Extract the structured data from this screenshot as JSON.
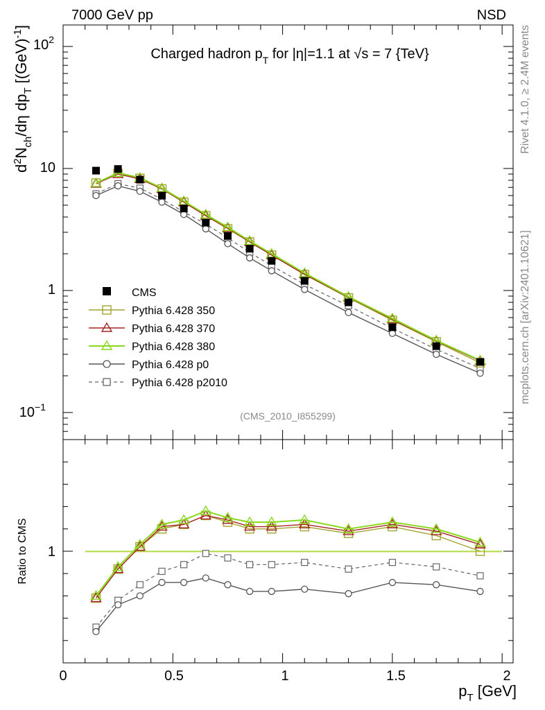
{
  "header": {
    "left": "7000 GeV pp",
    "right": "NSD"
  },
  "side_text": {
    "rivet": "Rivet 4.1.0, ≥ 2.4M events",
    "mcplots": "mcplots.cern.ch [arXiv:2401.10621]"
  },
  "analysis_id": "(CMS_2010_I855299)",
  "chart_data": [
    {
      "type": "line",
      "panel": "main",
      "title_parts": {
        "a": "Charged hadron p",
        "a_sub": "T",
        "b": " for |η|=1.1 at √s = 7 {TeV}"
      },
      "ylabel_parts": {
        "p1": "d",
        "p1_sup": "2",
        "p2": "N",
        "p2_sub": "ch",
        "p3": "/dη  dp",
        "p3_sub": "T",
        "p4": " [(GeV)",
        "p4_sup": "-1",
        "p5": "]"
      },
      "yscale": "log",
      "ylim": [
        0.06,
        150
      ],
      "xlim": [
        0,
        2.05
      ],
      "ytick_labels": {
        "t100_base": "10",
        "t100_exp": "2",
        "t10": "10",
        "t1": "1",
        "t01_base": "10",
        "t01_exp": "−1"
      },
      "x": [
        0.15,
        0.25,
        0.35,
        0.45,
        0.55,
        0.65,
        0.75,
        0.85,
        0.95,
        1.1,
        1.3,
        1.5,
        1.7,
        1.9
      ],
      "series": [
        {
          "name": "CMS",
          "label": "CMS",
          "values": [
            9.6,
            9.9,
            8.1,
            6.0,
            4.7,
            3.6,
            2.8,
            2.2,
            1.75,
            1.2,
            0.8,
            0.5,
            0.35,
            0.26
          ]
        },
        {
          "name": "Pythia 6.428 350",
          "label": "Pythia 6.428 350",
          "color": "#a4a431",
          "values": [
            7.6,
            9.1,
            8.3,
            6.8,
            5.3,
            4.1,
            3.2,
            2.5,
            1.95,
            1.35,
            0.87,
            0.57,
            0.38,
            0.255
          ]
        },
        {
          "name": "Pythia 6.428 370",
          "label": "Pythia 6.428 370",
          "color": "#a82424",
          "values": [
            7.5,
            9.0,
            8.2,
            6.8,
            5.3,
            4.1,
            3.25,
            2.5,
            1.95,
            1.36,
            0.88,
            0.58,
            0.385,
            0.265
          ]
        },
        {
          "name": "Pythia 6.428 380",
          "label": "Pythia 6.428 380",
          "color": "#88d81c",
          "values": [
            7.6,
            9.2,
            8.4,
            6.9,
            5.4,
            4.2,
            3.3,
            2.55,
            2.0,
            1.39,
            0.89,
            0.59,
            0.39,
            0.268
          ]
        },
        {
          "name": "Pythia 6.428 p0",
          "label": "Pythia 6.428 p0",
          "color": "#555555",
          "values": [
            6.0,
            7.2,
            6.5,
            5.3,
            4.2,
            3.2,
            2.42,
            1.85,
            1.45,
            1.02,
            0.66,
            0.445,
            0.3,
            0.21
          ]
        },
        {
          "name": "Pythia 6.428 p2010",
          "label": "Pythia 6.428 p2010",
          "color": "#666666",
          "values": [
            6.2,
            7.5,
            6.9,
            5.6,
            4.4,
            3.5,
            2.7,
            2.05,
            1.6,
            1.12,
            0.75,
            0.49,
            0.33,
            0.23
          ]
        }
      ]
    },
    {
      "type": "line",
      "panel": "ratio",
      "ylabel": "Ratio to CMS",
      "xlabel_parts": {
        "a": "p",
        "a_sub": "T",
        "b": " [GeV]"
      },
      "xlim": [
        0,
        2.05
      ],
      "ylim": [
        0.5,
        1.5
      ],
      "ytick_label": "1",
      "xtick_labels": [
        "0",
        "0.5",
        "1",
        "1.5",
        "2"
      ],
      "x": [
        0.15,
        0.25,
        0.35,
        0.45,
        0.55,
        0.65,
        0.75,
        0.85,
        0.95,
        1.1,
        1.3,
        1.5,
        1.7,
        1.9
      ],
      "series": [
        {
          "name": "Pythia 6.428 350",
          "values": [
            0.79,
            0.92,
            1.02,
            1.1,
            1.12,
            1.16,
            1.13,
            1.1,
            1.1,
            1.11,
            1.08,
            1.11,
            1.07,
            1.0
          ]
        },
        {
          "name": "Pythia 6.428 370",
          "values": [
            0.79,
            0.92,
            1.02,
            1.11,
            1.12,
            1.16,
            1.14,
            1.11,
            1.11,
            1.12,
            1.09,
            1.12,
            1.09,
            1.03
          ]
        },
        {
          "name": "Pythia 6.428 380",
          "values": [
            0.8,
            0.93,
            1.03,
            1.12,
            1.14,
            1.18,
            1.15,
            1.13,
            1.13,
            1.14,
            1.1,
            1.13,
            1.1,
            1.04
          ]
        },
        {
          "name": "Pythia 6.428 p0",
          "values": [
            0.64,
            0.76,
            0.8,
            0.86,
            0.86,
            0.88,
            0.85,
            0.82,
            0.82,
            0.83,
            0.81,
            0.86,
            0.85,
            0.82
          ]
        },
        {
          "name": "Pythia 6.428 p2010",
          "values": [
            0.66,
            0.78,
            0.85,
            0.91,
            0.94,
            0.99,
            0.97,
            0.94,
            0.94,
            0.95,
            0.92,
            0.95,
            0.93,
            0.89
          ]
        }
      ]
    }
  ]
}
